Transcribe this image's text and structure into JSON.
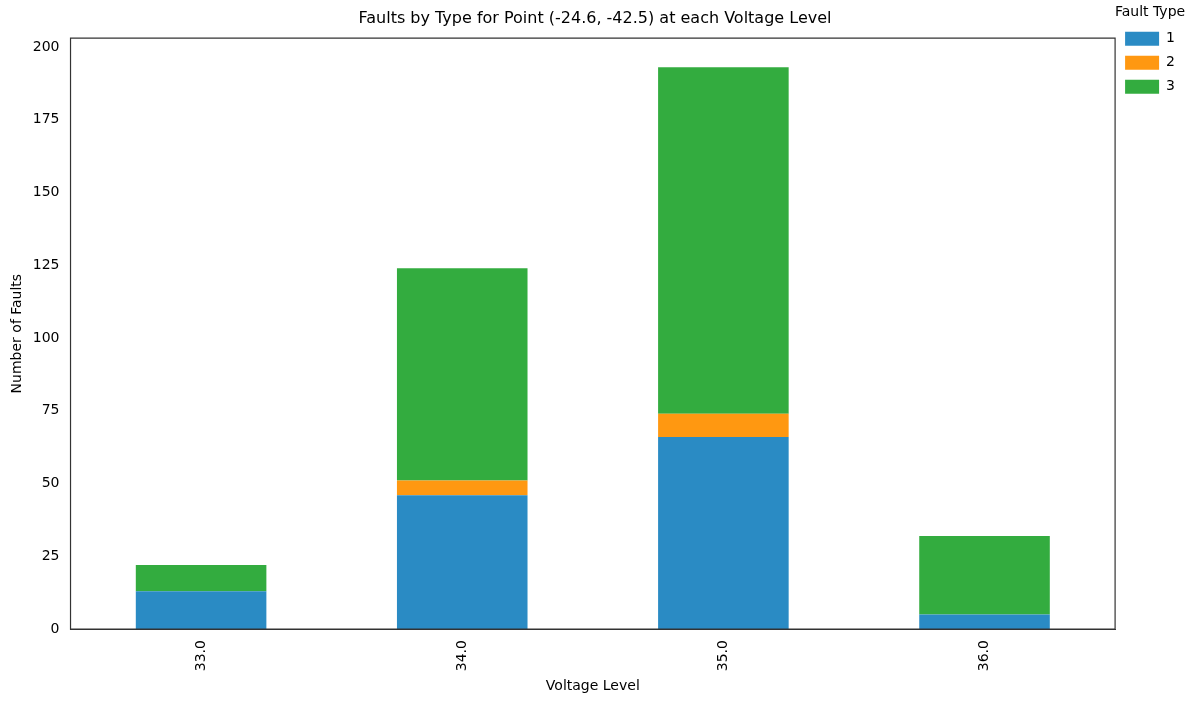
{
  "chart_data": {
    "type": "bar",
    "title": "Faults by Type for Point (-24.6, -42.5) at each Voltage Level",
    "xlabel": "Voltage Level",
    "ylabel": "Number of Faults",
    "legend_title": "Fault Type",
    "categories": [
      "33.0",
      "34.0",
      "35.0",
      "36.0"
    ],
    "series": [
      {
        "name": "1",
        "color": "#2a8bc4",
        "values": [
          13,
          46,
          66,
          5
        ]
      },
      {
        "name": "2",
        "color": "#ff9811",
        "values": [
          0,
          5,
          8,
          0
        ]
      },
      {
        "name": "3",
        "color": "#33ac3f",
        "values": [
          9,
          73,
          119,
          27
        ]
      }
    ],
    "stacked": true,
    "ylim": [
      0,
      203
    ],
    "yticks": [
      0,
      25,
      50,
      75,
      100,
      125,
      150,
      175,
      200
    ],
    "grid": false,
    "legend": "top right"
  }
}
